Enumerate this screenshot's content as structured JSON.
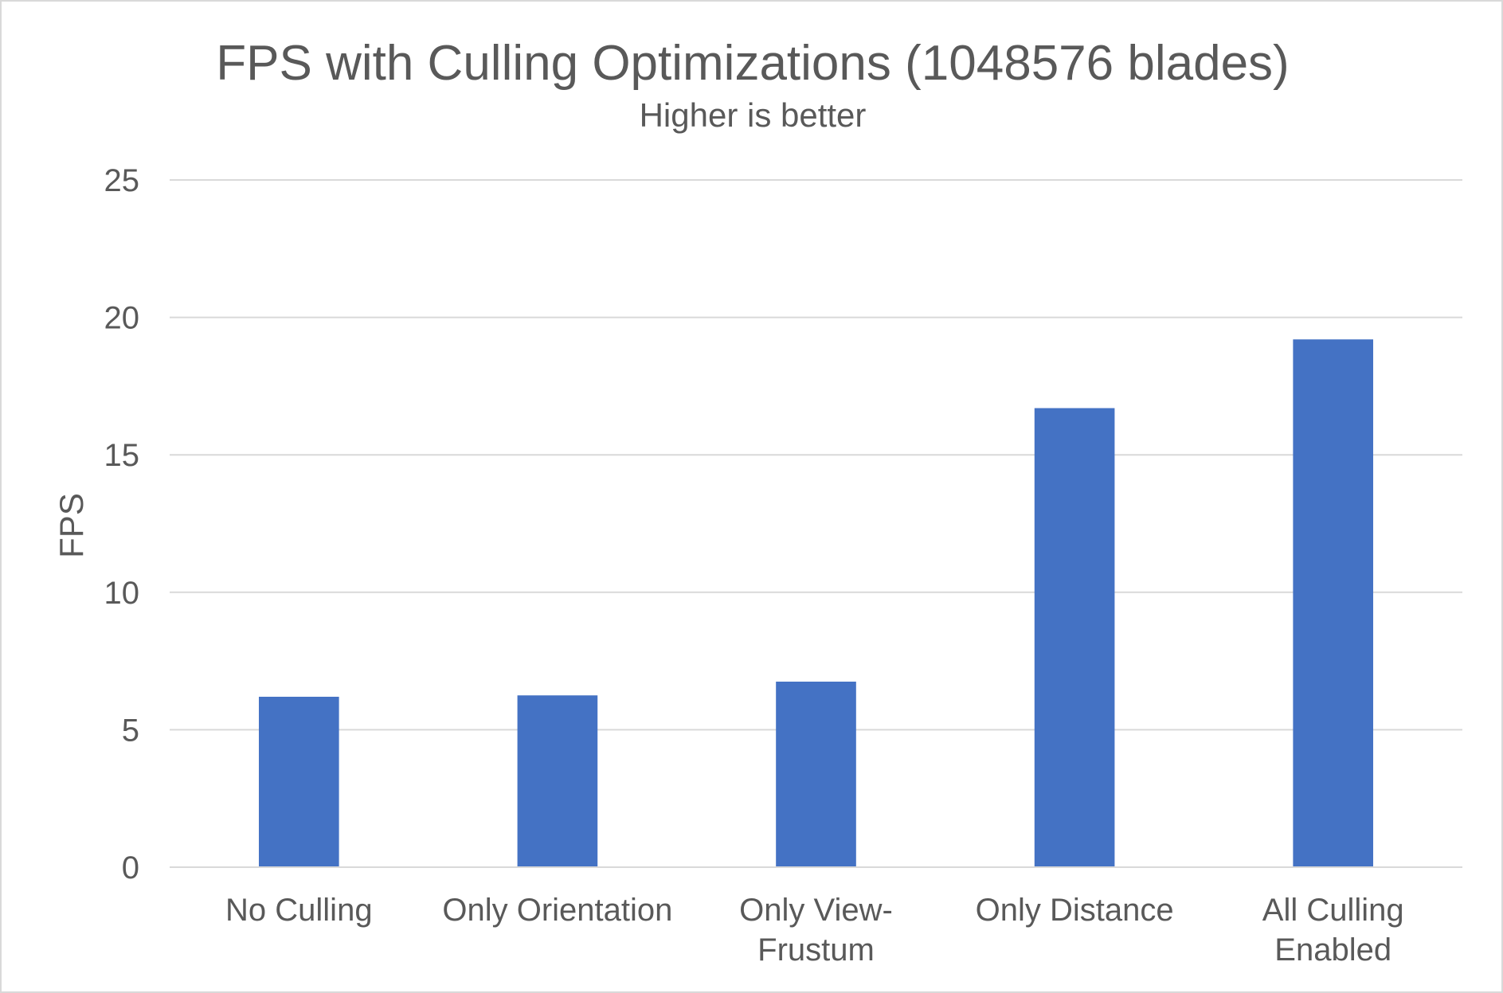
{
  "chart_data": {
    "type": "bar",
    "title": "FPS with Culling Optimizations (1048576 blades)",
    "subtitle": "Higher is better",
    "xlabel": "",
    "ylabel": "FPS",
    "categories": [
      [
        "No Culling"
      ],
      [
        "Only Orientation"
      ],
      [
        "Only View-",
        "Frustum"
      ],
      [
        "Only Distance"
      ],
      [
        "All Culling",
        "Enabled"
      ]
    ],
    "values": [
      6.2,
      6.25,
      6.75,
      16.7,
      19.2
    ],
    "ylim": [
      0,
      25
    ],
    "yticks": [
      0,
      5,
      10,
      15,
      20,
      25
    ],
    "grid": true,
    "legend": "none",
    "colors": {
      "bar": "#4472c4",
      "grid": "#d9d9d9",
      "text": "#595959"
    }
  }
}
